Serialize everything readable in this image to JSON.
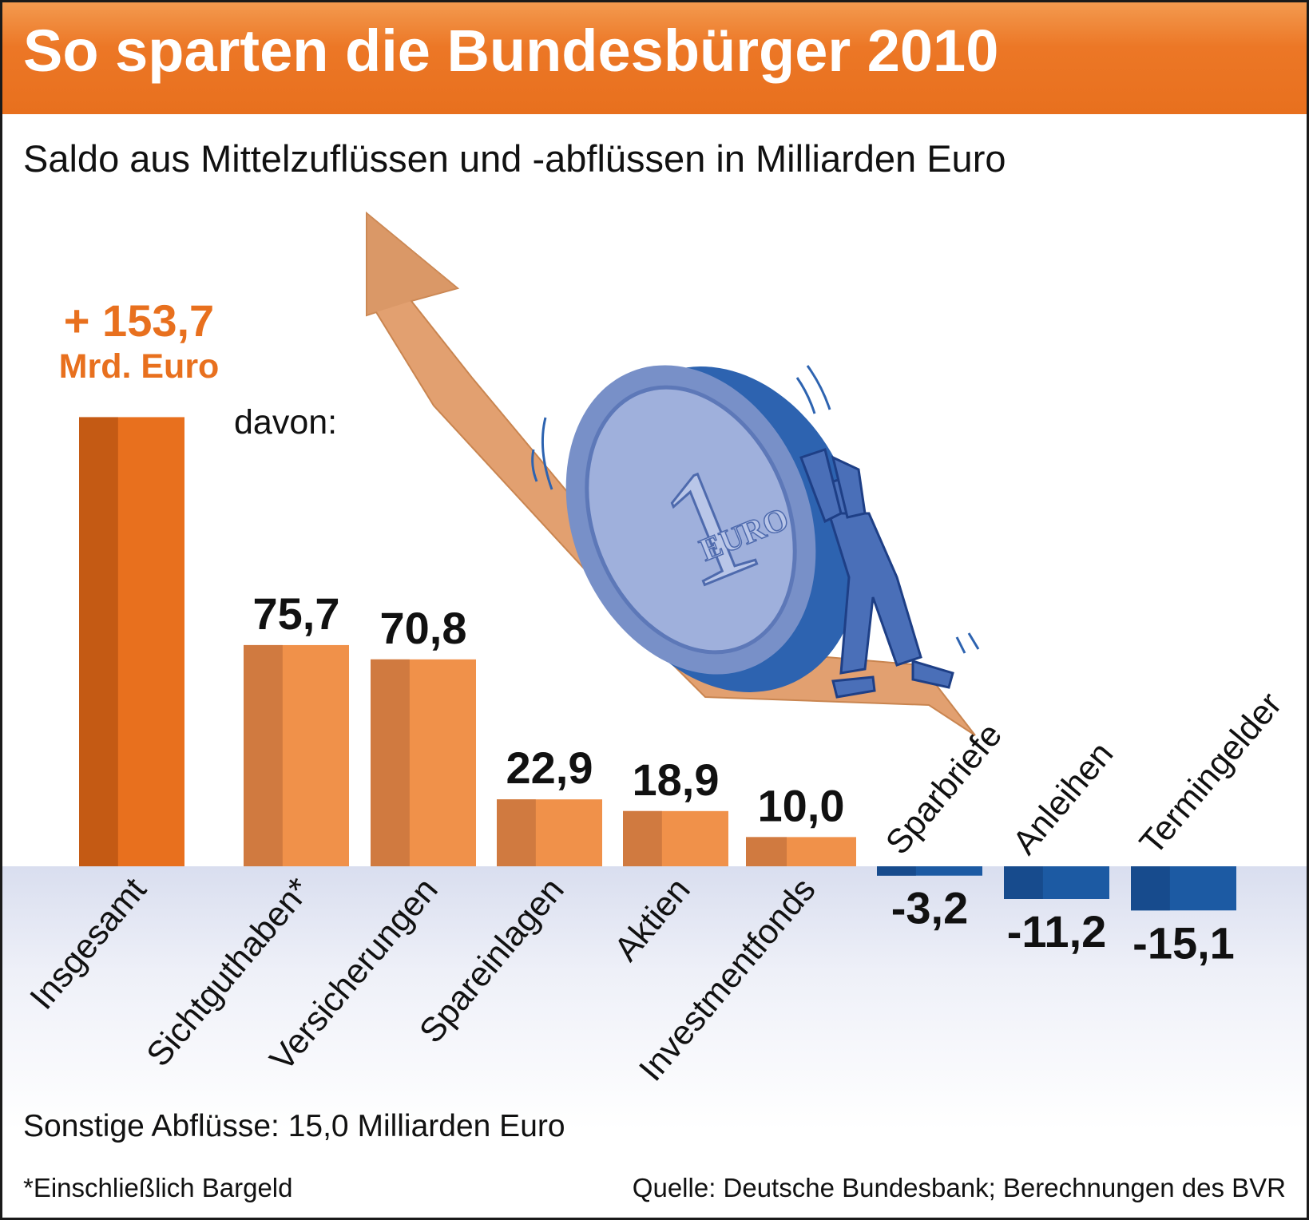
{
  "title": "So sparten die Bundesbürger 2010",
  "subtitle": "Saldo aus Mittelzuflüssen und -abflüssen in Milliarden Euro",
  "total": {
    "value_text": "+ 153,7",
    "unit_text": "Mrd. Euro"
  },
  "davon_label": "davon:",
  "other_outflows": "Sonstige Abflüsse: 15,0 Milliarden Euro",
  "footnote": "*Einschließlich Bargeld",
  "source": "Quelle: Deutsche Bundesbank; Berechnungen des BVR",
  "colors": {
    "header_orange": "#e8701e",
    "total_bar": "#e8701e",
    "positive_bar": "#f0914a",
    "negative_bar": "#1c5aa3",
    "illustration_coin": "#6f8cc9",
    "illustration_arrow": "#e2a070"
  },
  "illustration": {
    "coin_text": "EURO",
    "coin_numeral": "1",
    "description_icon": "man-pushing-euro-coin-up-arrow-icon"
  },
  "chart_data": {
    "type": "bar",
    "categories": [
      "Insgesamt",
      "Sichtguthaben*",
      "Versicherungen",
      "Spareinlagen",
      "Aktien",
      "Investmentfonds",
      "Sparbriefe",
      "Anleihen",
      "Termingelder"
    ],
    "values": [
      153.7,
      75.7,
      70.8,
      22.9,
      18.9,
      10.0,
      -3.2,
      -11.2,
      -15.1
    ],
    "value_labels": [
      "+ 153,7",
      "75,7",
      "70,8",
      "22,9",
      "18,9",
      "10,0",
      "-3,2",
      "-11,2",
      "-15,1"
    ],
    "title": "So sparten die Bundesbürger 2010",
    "ylabel": "Milliarden Euro",
    "grid": false,
    "legend": "none"
  }
}
